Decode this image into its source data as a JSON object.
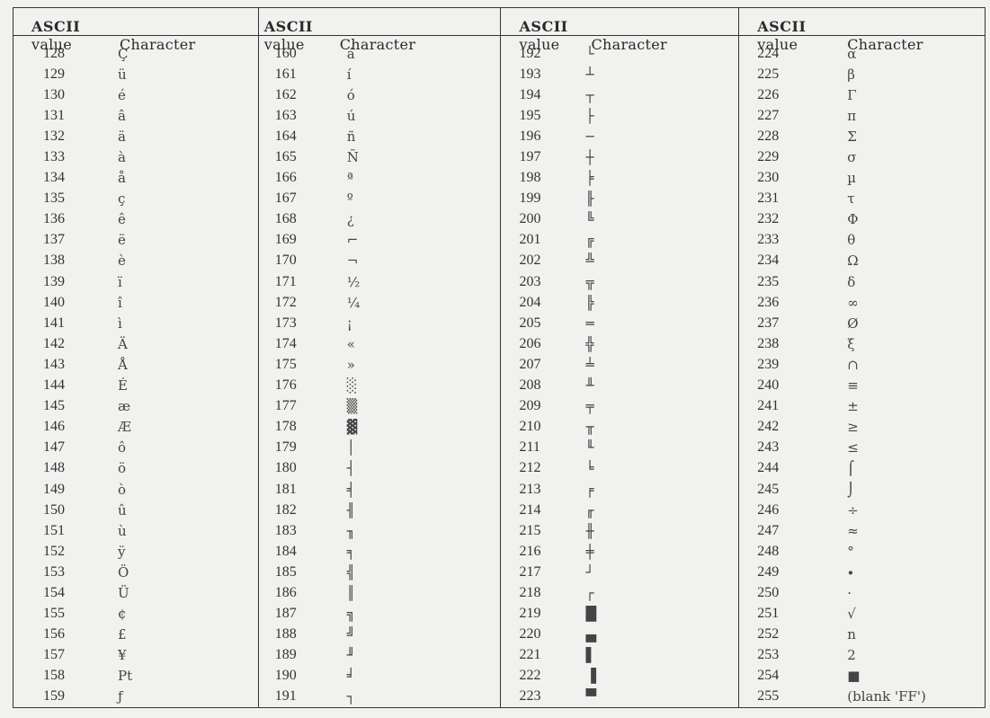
{
  "table": {
    "header": {
      "ascii": "ASCII",
      "value": "value",
      "character": "Character"
    },
    "columns": [
      {
        "rows": [
          {
            "value": "128",
            "char": "Ç"
          },
          {
            "value": "129",
            "char": "ü"
          },
          {
            "value": "130",
            "char": "é"
          },
          {
            "value": "131",
            "char": "â"
          },
          {
            "value": "132",
            "char": "ä"
          },
          {
            "value": "133",
            "char": "à"
          },
          {
            "value": "134",
            "char": "å"
          },
          {
            "value": "135",
            "char": "ç"
          },
          {
            "value": "136",
            "char": "ê"
          },
          {
            "value": "137",
            "char": "ë"
          },
          {
            "value": "138",
            "char": "è"
          },
          {
            "value": "139",
            "char": "ï"
          },
          {
            "value": "140",
            "char": "î"
          },
          {
            "value": "141",
            "char": "ì"
          },
          {
            "value": "142",
            "char": "Ä"
          },
          {
            "value": "143",
            "char": "Å"
          },
          {
            "value": "144",
            "char": "É"
          },
          {
            "value": "145",
            "char": "æ"
          },
          {
            "value": "146",
            "char": "Æ"
          },
          {
            "value": "147",
            "char": "ô"
          },
          {
            "value": "148",
            "char": "ö"
          },
          {
            "value": "149",
            "char": "ò"
          },
          {
            "value": "150",
            "char": "û"
          },
          {
            "value": "151",
            "char": "ù"
          },
          {
            "value": "152",
            "char": "ÿ"
          },
          {
            "value": "153",
            "char": "Ö"
          },
          {
            "value": "154",
            "char": "Ü"
          },
          {
            "value": "155",
            "char": "¢"
          },
          {
            "value": "156",
            "char": "£"
          },
          {
            "value": "157",
            "char": "¥"
          },
          {
            "value": "158",
            "char": "Pt"
          },
          {
            "value": "159",
            "char": "ƒ"
          }
        ]
      },
      {
        "rows": [
          {
            "value": "160",
            "char": "á"
          },
          {
            "value": "161",
            "char": "í"
          },
          {
            "value": "162",
            "char": "ó"
          },
          {
            "value": "163",
            "char": "ú"
          },
          {
            "value": "164",
            "char": "ñ"
          },
          {
            "value": "165",
            "char": "Ñ"
          },
          {
            "value": "166",
            "char": "ª"
          },
          {
            "value": "167",
            "char": "º"
          },
          {
            "value": "168",
            "char": "¿"
          },
          {
            "value": "169",
            "char": "⌐"
          },
          {
            "value": "170",
            "char": "¬"
          },
          {
            "value": "171",
            "char": "½"
          },
          {
            "value": "172",
            "char": "¼"
          },
          {
            "value": "173",
            "char": "¡"
          },
          {
            "value": "174",
            "char": "«"
          },
          {
            "value": "175",
            "char": "»"
          },
          {
            "value": "176",
            "char": "░"
          },
          {
            "value": "177",
            "char": "▒"
          },
          {
            "value": "178",
            "char": "▓"
          },
          {
            "value": "179",
            "char": "│"
          },
          {
            "value": "180",
            "char": "┤"
          },
          {
            "value": "181",
            "char": "╡"
          },
          {
            "value": "182",
            "char": "╢"
          },
          {
            "value": "183",
            "char": "╖"
          },
          {
            "value": "184",
            "char": "╕"
          },
          {
            "value": "185",
            "char": "╣"
          },
          {
            "value": "186",
            "char": "║"
          },
          {
            "value": "187",
            "char": "╗"
          },
          {
            "value": "188",
            "char": "╝"
          },
          {
            "value": "189",
            "char": "╜"
          },
          {
            "value": "190",
            "char": "╛"
          },
          {
            "value": "191",
            "char": "┐"
          }
        ]
      },
      {
        "rows": [
          {
            "value": "192",
            "char": "└"
          },
          {
            "value": "193",
            "char": "┴"
          },
          {
            "value": "194",
            "char": "┬"
          },
          {
            "value": "195",
            "char": "├"
          },
          {
            "value": "196",
            "char": "─"
          },
          {
            "value": "197",
            "char": "┼"
          },
          {
            "value": "198",
            "char": "╞"
          },
          {
            "value": "199",
            "char": "╟"
          },
          {
            "value": "200",
            "char": "╚"
          },
          {
            "value": "201",
            "char": "╔"
          },
          {
            "value": "202",
            "char": "╩"
          },
          {
            "value": "203",
            "char": "╦"
          },
          {
            "value": "204",
            "char": "╠"
          },
          {
            "value": "205",
            "char": "═"
          },
          {
            "value": "206",
            "char": "╬"
          },
          {
            "value": "207",
            "char": "╧"
          },
          {
            "value": "208",
            "char": "╨"
          },
          {
            "value": "209",
            "char": "╤"
          },
          {
            "value": "210",
            "char": "╥"
          },
          {
            "value": "211",
            "char": "╙"
          },
          {
            "value": "212",
            "char": "╘"
          },
          {
            "value": "213",
            "char": "╒"
          },
          {
            "value": "214",
            "char": "╓"
          },
          {
            "value": "215",
            "char": "╫"
          },
          {
            "value": "216",
            "char": "╪"
          },
          {
            "value": "217",
            "char": "┘"
          },
          {
            "value": "218",
            "char": "┌"
          },
          {
            "value": "219",
            "char": "█"
          },
          {
            "value": "220",
            "char": "▄"
          },
          {
            "value": "221",
            "char": "▌"
          },
          {
            "value": "222",
            "char": "▐"
          },
          {
            "value": "223",
            "char": "▀"
          }
        ]
      },
      {
        "rows": [
          {
            "value": "224",
            "char": "α"
          },
          {
            "value": "225",
            "char": "β"
          },
          {
            "value": "226",
            "char": "Γ"
          },
          {
            "value": "227",
            "char": "π"
          },
          {
            "value": "228",
            "char": "Σ"
          },
          {
            "value": "229",
            "char": "σ"
          },
          {
            "value": "230",
            "char": "µ"
          },
          {
            "value": "231",
            "char": "τ"
          },
          {
            "value": "232",
            "char": "Φ"
          },
          {
            "value": "233",
            "char": "θ"
          },
          {
            "value": "234",
            "char": "Ω"
          },
          {
            "value": "235",
            "char": "δ"
          },
          {
            "value": "236",
            "char": "∞"
          },
          {
            "value": "237",
            "char": "Ø"
          },
          {
            "value": "238",
            "char": "ξ"
          },
          {
            "value": "239",
            "char": "∩"
          },
          {
            "value": "240",
            "char": "≡"
          },
          {
            "value": "241",
            "char": "±"
          },
          {
            "value": "242",
            "char": "≥"
          },
          {
            "value": "243",
            "char": "≤"
          },
          {
            "value": "244",
            "char": "⌠"
          },
          {
            "value": "245",
            "char": "⌡"
          },
          {
            "value": "246",
            "char": "÷"
          },
          {
            "value": "247",
            "char": "≈"
          },
          {
            "value": "248",
            "char": "°"
          },
          {
            "value": "249",
            "char": "∙"
          },
          {
            "value": "250",
            "char": "·"
          },
          {
            "value": "251",
            "char": "√"
          },
          {
            "value": "252",
            "char": "n"
          },
          {
            "value": "253",
            "char": "2"
          },
          {
            "value": "254",
            "char": "■"
          },
          {
            "value": "255",
            "char": "(blank 'FF')"
          }
        ]
      }
    ]
  }
}
